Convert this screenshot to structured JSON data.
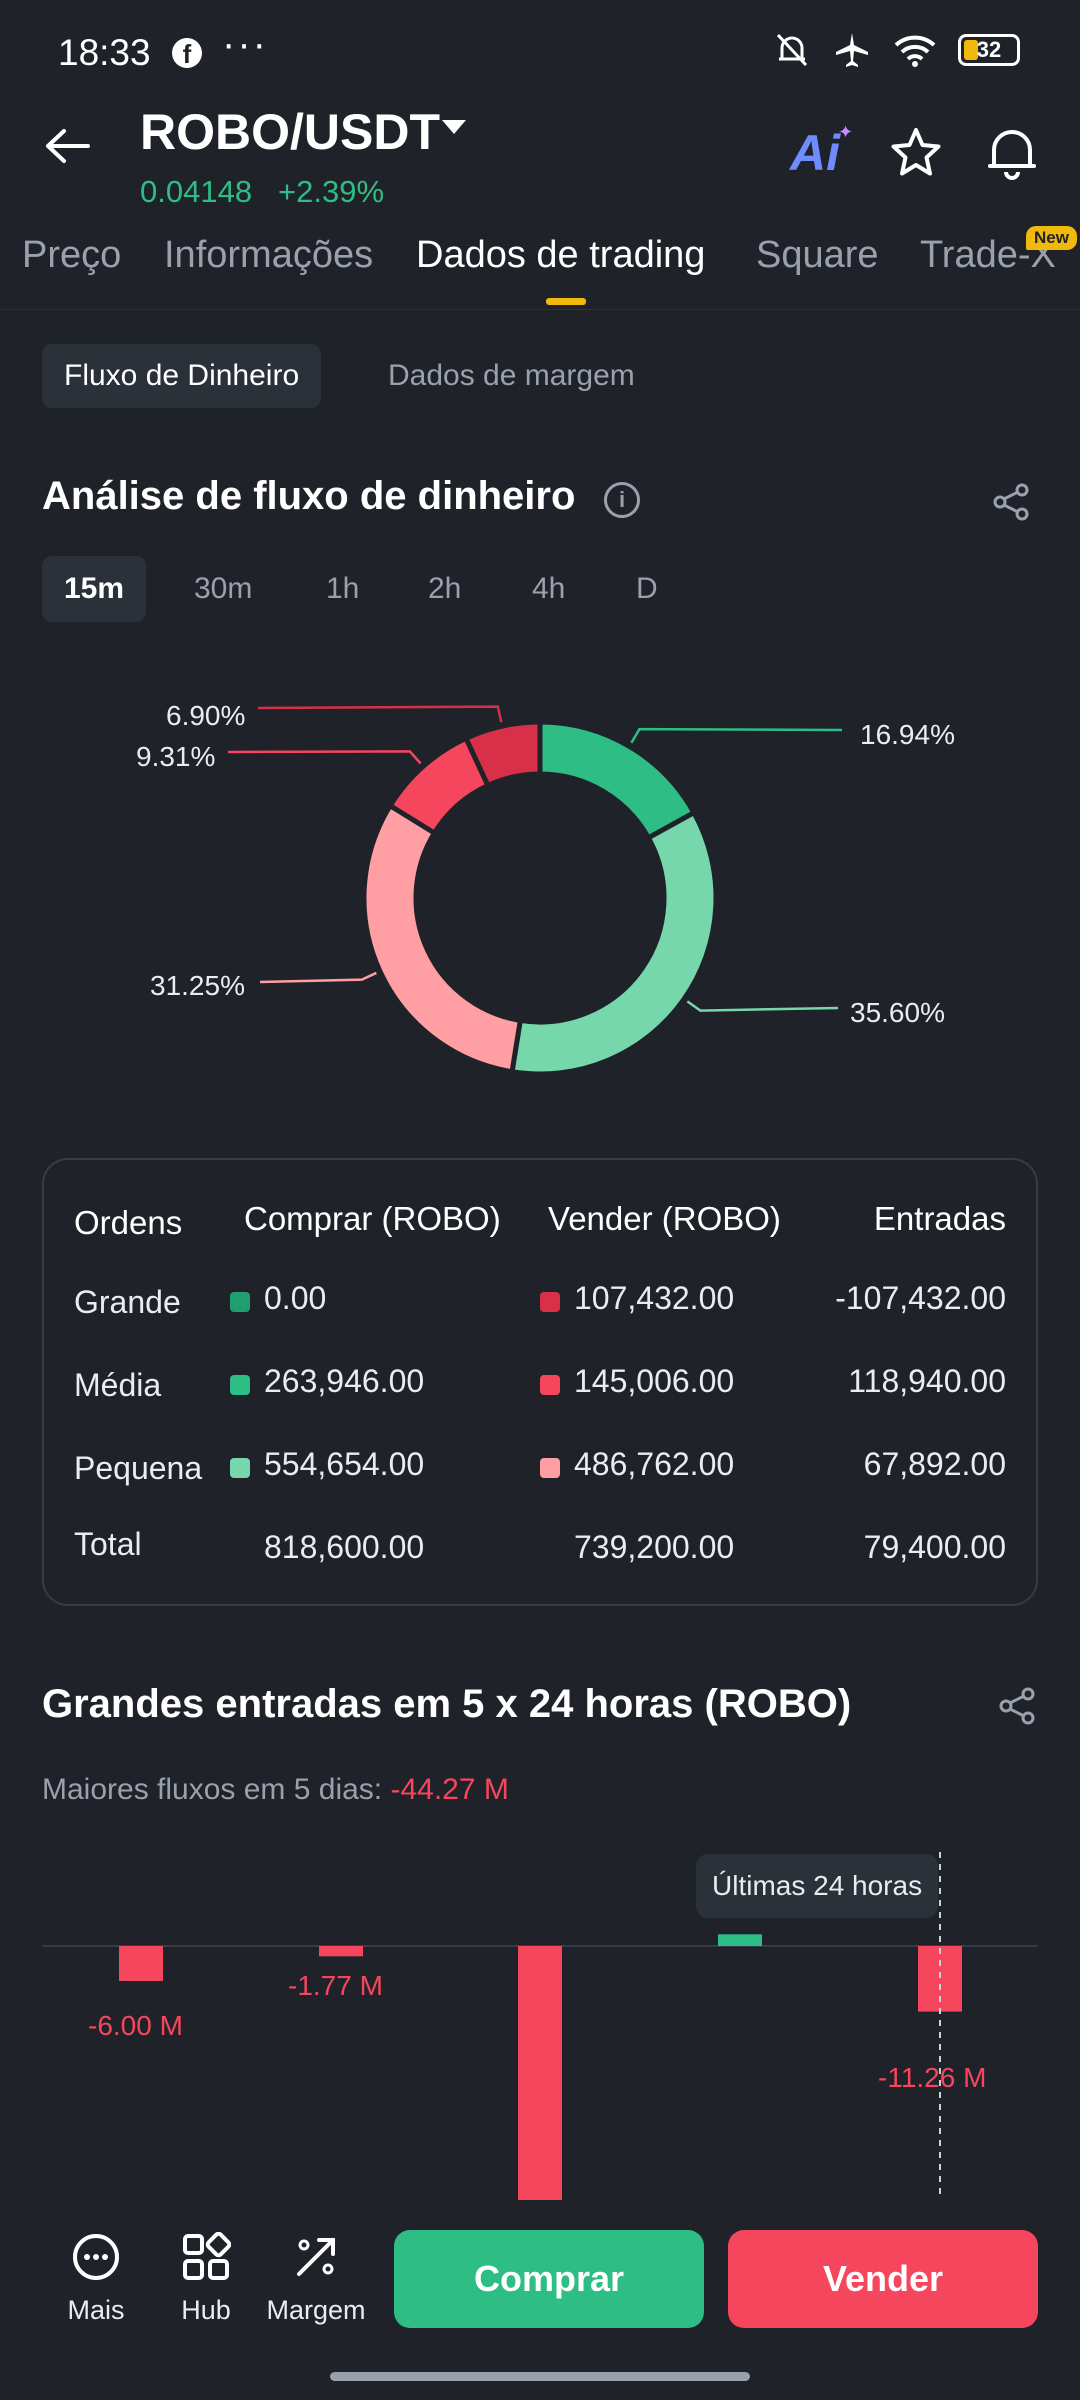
{
  "status_bar": {
    "time": "18:33",
    "battery": "32"
  },
  "header": {
    "pair": "ROBO/USDT",
    "price": "0.04148",
    "change": "+2.39%",
    "ai_label": "Ai"
  },
  "tabs": [
    {
      "label": "Preço"
    },
    {
      "label": "Informações"
    },
    {
      "label": "Dados de trading"
    },
    {
      "label": "Square"
    },
    {
      "label": "Trade-X"
    }
  ],
  "new_badge": "New",
  "subtabs": [
    {
      "label": "Fluxo de Dinheiro"
    },
    {
      "label": "Dados de margem"
    }
  ],
  "money_flow": {
    "title": "Análise de fluxo de dinheiro",
    "periods": [
      {
        "label": "15m"
      },
      {
        "label": "30m"
      },
      {
        "label": "1h"
      },
      {
        "label": "2h"
      },
      {
        "label": "4h"
      },
      {
        "label": "D"
      }
    ],
    "active_period": "15m"
  },
  "chart_data": [
    {
      "type": "pie",
      "categories": [
        "Comprar Grande",
        "Comprar Média",
        "Comprar Pequena",
        "Vender Pequena",
        "Vender Média",
        "Vender Grande"
      ],
      "values": [
        0.0,
        16.94,
        35.6,
        31.25,
        9.31,
        6.9
      ],
      "labels": [
        "",
        "16.94%",
        "35.60%",
        "31.25%",
        "9.31%",
        "6.90%"
      ],
      "colors": [
        "#1f9e6e",
        "#2ebd85",
        "#76d7ac",
        "#ff9ea3",
        "#f6465d",
        "#d9304a"
      ]
    },
    {
      "type": "bar",
      "values": [
        -6.0,
        -1.77,
        -44.27,
        2.0,
        -11.26
      ],
      "labels": [
        "-6.00 M",
        "-1.77 M",
        "",
        "",
        "-11.26 M"
      ],
      "colors": [
        "#f6465d",
        "#f6465d",
        "#f6465d",
        "#2ebd85",
        "#f6465d"
      ]
    }
  ],
  "orders_table": {
    "headers": {
      "orders": "Ordens",
      "buy": "Comprar (ROBO)",
      "sell": "Vender (ROBO)",
      "inflow": "Entradas"
    },
    "rows": [
      {
        "label": "Grande",
        "buy": "0.00",
        "sell": "107,432.00",
        "inflow": "-107,432.00",
        "buy_color": "#1f9e6e",
        "sell_color": "#d9304a"
      },
      {
        "label": "Média",
        "buy": "263,946.00",
        "sell": "145,006.00",
        "inflow": "118,940.00",
        "buy_color": "#2ebd85",
        "sell_color": "#f6465d"
      },
      {
        "label": "Pequena",
        "buy": "554,654.00",
        "sell": "486,762.00",
        "inflow": "67,892.00",
        "buy_color": "#76d7ac",
        "sell_color": "#ff9ea3"
      },
      {
        "label": "Total",
        "buy": "818,600.00",
        "sell": "739,200.00",
        "inflow": "79,400.00"
      }
    ]
  },
  "large_inflows": {
    "title": "Grandes entradas em 5 x 24 horas (ROBO)",
    "subtitle_label": "Maiores fluxos em 5 dias:",
    "subtitle_value": "-44.27 M",
    "tooltip": "Últimas 24 horas"
  },
  "bottom_nav": {
    "more": "Mais",
    "hub": "Hub",
    "margin": "Margem",
    "buy": "Comprar",
    "sell": "Vender"
  }
}
